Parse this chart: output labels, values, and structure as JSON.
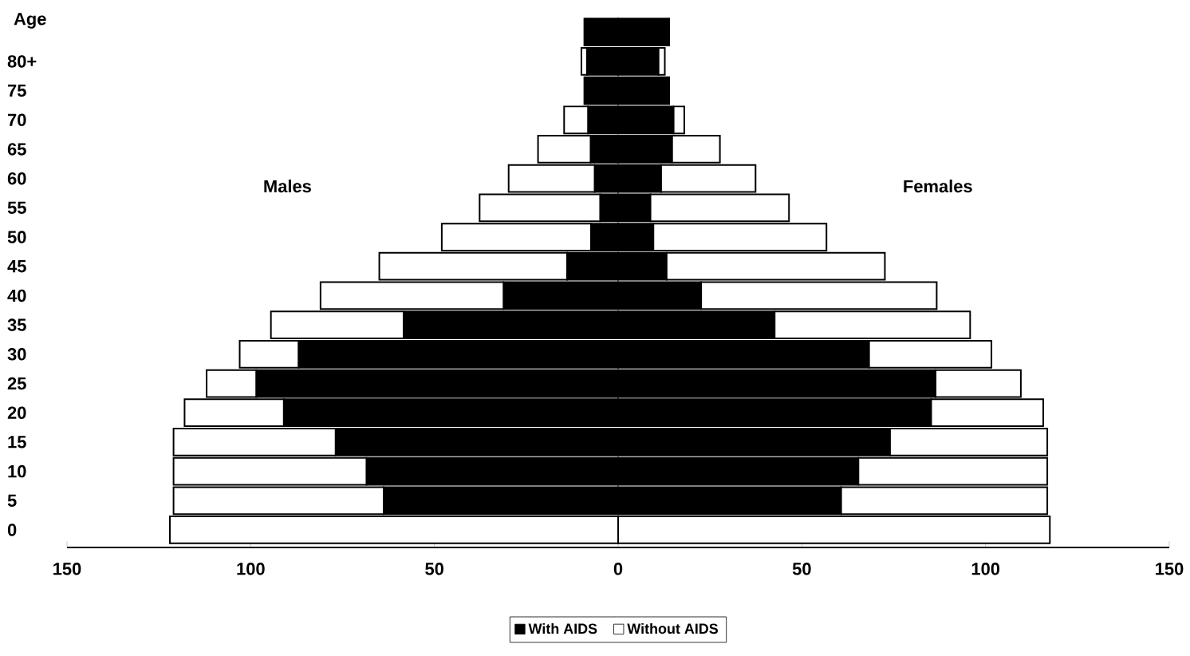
{
  "chart_data": {
    "type": "bar",
    "orientation": "horizontal",
    "ylabel": "Age",
    "categories": [
      null,
      "80+",
      "75",
      "70",
      "65",
      "60",
      "55",
      "50",
      "45",
      "40",
      "35",
      "30",
      "25",
      "20",
      "15",
      "10",
      "5",
      "0"
    ],
    "series": [
      {
        "name": "With AIDS",
        "color": "#000000",
        "values": [
          -9.2,
          -8.5,
          -9.2,
          -8.2,
          -7.5,
          -6.4,
          -4.9,
          -7.4,
          -13.9,
          -31.2,
          -58.4,
          -87,
          -98.5,
          -91,
          -76.9,
          -68.5,
          -63.8,
          null
        ]
      },
      {
        "color": "#000000",
        "values": [
          13.9,
          11,
          13.9,
          15.1,
          14.7,
          11.7,
          8.8,
          9.6,
          13.2,
          22.6,
          42.6,
          68.3,
          86.4,
          85.2,
          74,
          65.4,
          60.7,
          null
        ]
      },
      {
        "name": "Without AIDS",
        "color": "#ffffff",
        "values": [
          null,
          -1.5,
          null,
          -6.5,
          -14.3,
          -23.4,
          -32.8,
          -40.6,
          -51.1,
          -49.8,
          -36.1,
          -16,
          -13.5,
          -27,
          -44.1,
          -52.5,
          -57.2,
          -122
        ]
      },
      {
        "color": "#ffffff",
        "values": [
          null,
          1.7,
          null,
          2.9,
          13,
          25.7,
          37.7,
          47.1,
          59.4,
          64.1,
          53.2,
          33.3,
          23.2,
          30.5,
          42.8,
          51.4,
          56.1,
          117.5
        ]
      }
    ],
    "stacked": true,
    "xlim": [
      -150,
      150
    ],
    "xticks": [
      {
        "value": -150,
        "label": "150"
      },
      {
        "value": -100,
        "label": "100"
      },
      {
        "value": -50,
        "label": "50"
      },
      0,
      {
        "value": 50,
        "label": "50"
      },
      {
        "value": 100,
        "label": "100"
      },
      {
        "value": 150,
        "label": "150"
      }
    ],
    "annotations": [
      "Males",
      "Females"
    ],
    "legend": "bottom"
  }
}
